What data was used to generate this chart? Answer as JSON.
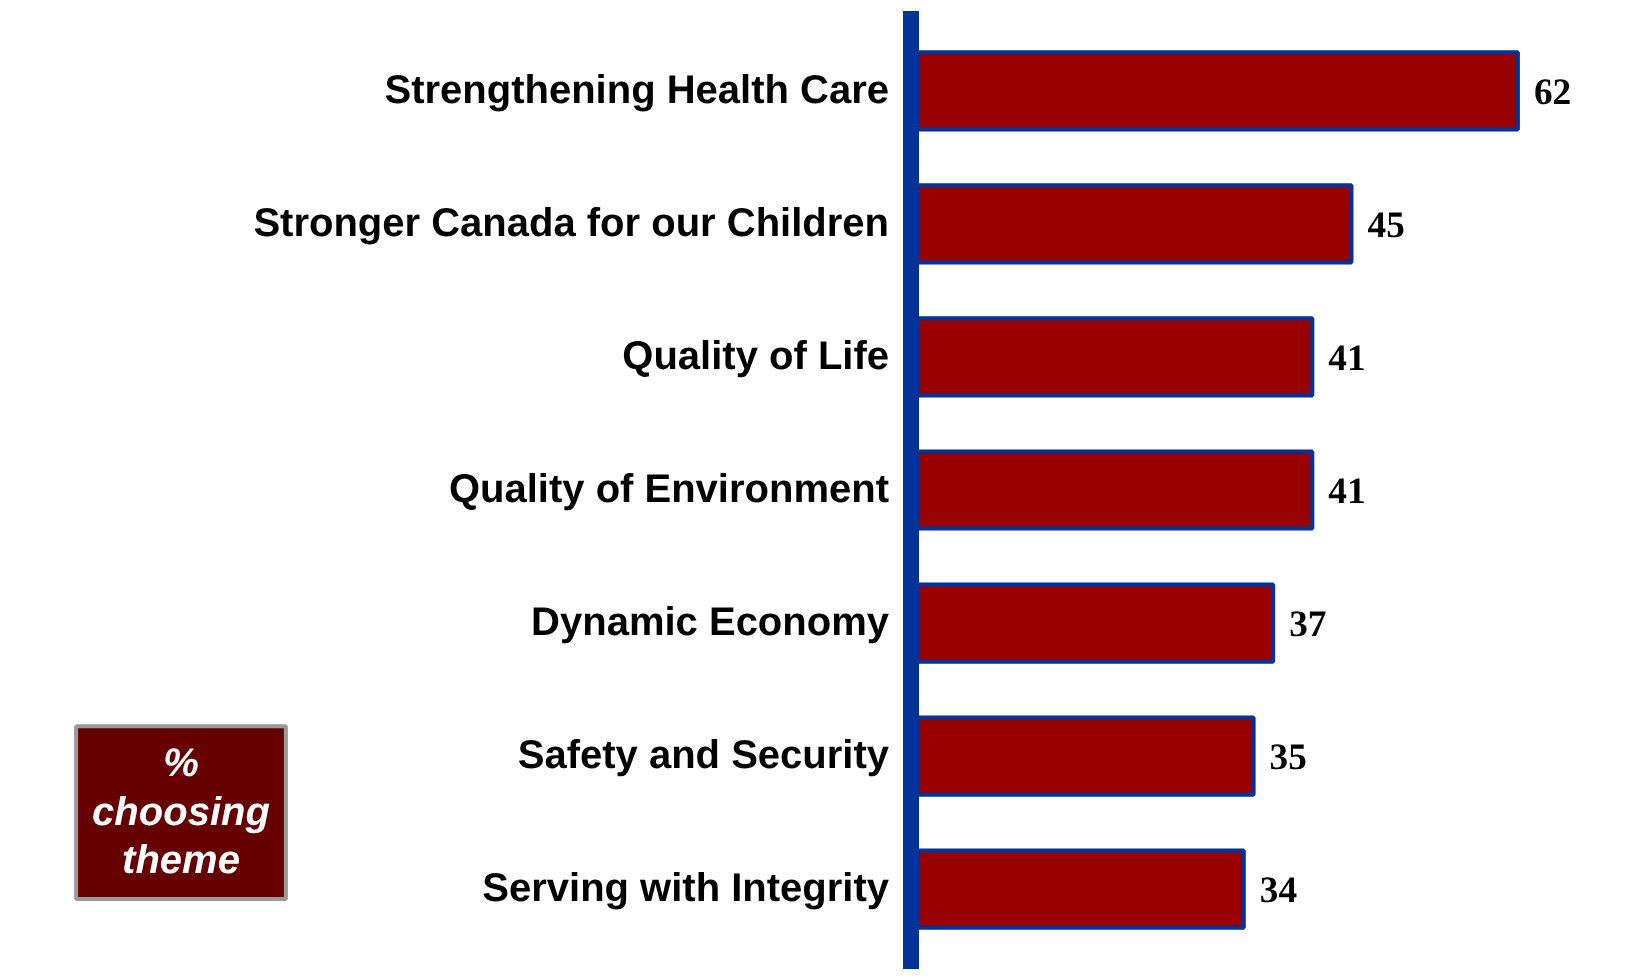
{
  "chart_data": {
    "type": "bar",
    "orientation": "horizontal",
    "categories": [
      "Strengthening Health Care",
      "Stronger Canada for our Children",
      "Quality of Life",
      "Quality of Environment",
      "Dynamic Economy",
      "Safety and Security",
      "Serving with Integrity"
    ],
    "values": [
      62,
      45,
      41,
      41,
      37,
      35,
      34
    ],
    "color": "#990000",
    "data_labels": true,
    "grid": false,
    "annotations": [
      "% choosing theme"
    ]
  }
}
